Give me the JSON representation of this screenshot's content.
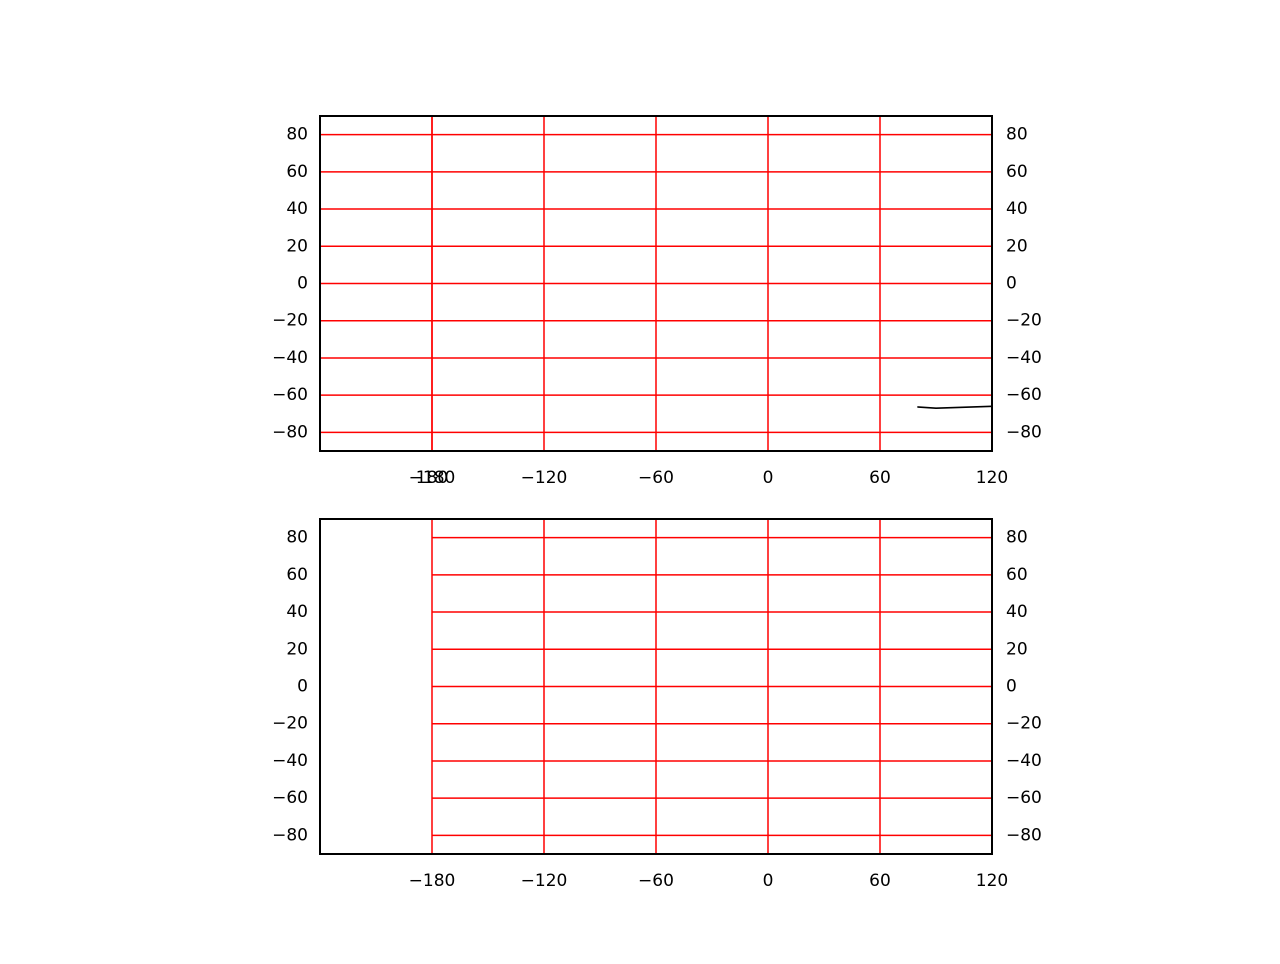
{
  "maps": [
    {
      "xlim": [
        -240,
        120
      ],
      "ylim": [
        -90,
        90
      ],
      "xticks": [
        {
          "value": -180,
          "label": "−180"
        },
        180,
        {
          "value": -120,
          "label": "−120"
        },
        {
          "value": -60,
          "label": "−60"
        },
        0,
        60,
        120
      ],
      "yticks": [
        80,
        60,
        40,
        20,
        0,
        {
          "value": -20,
          "label": "−20"
        },
        {
          "value": -40,
          "label": "−40"
        },
        {
          "value": -60,
          "label": "−60"
        },
        {
          "value": -80,
          "label": "−80"
        }
      ],
      "grid_color": "#ff0000",
      "ygrid_xlim": [
        -240,
        120
      ]
    },
    {
      "xlim": [
        -240,
        120
      ],
      "ylim": [
        -90,
        90
      ],
      "xticks": [
        {
          "value": -180,
          "label": "−180"
        },
        {
          "value": -120,
          "label": "−120"
        },
        {
          "value": -60,
          "label": "−60"
        },
        0,
        60,
        120
      ],
      "yticks": [
        80,
        60,
        40,
        20,
        0,
        {
          "value": -20,
          "label": "−20"
        },
        {
          "value": -40,
          "label": "−40"
        },
        {
          "value": -60,
          "label": "−60"
        },
        {
          "value": -80,
          "label": "−80"
        }
      ],
      "grid_color": "#ff0000",
      "ygrid_xlim": [
        -180,
        120
      ]
    }
  ]
}
